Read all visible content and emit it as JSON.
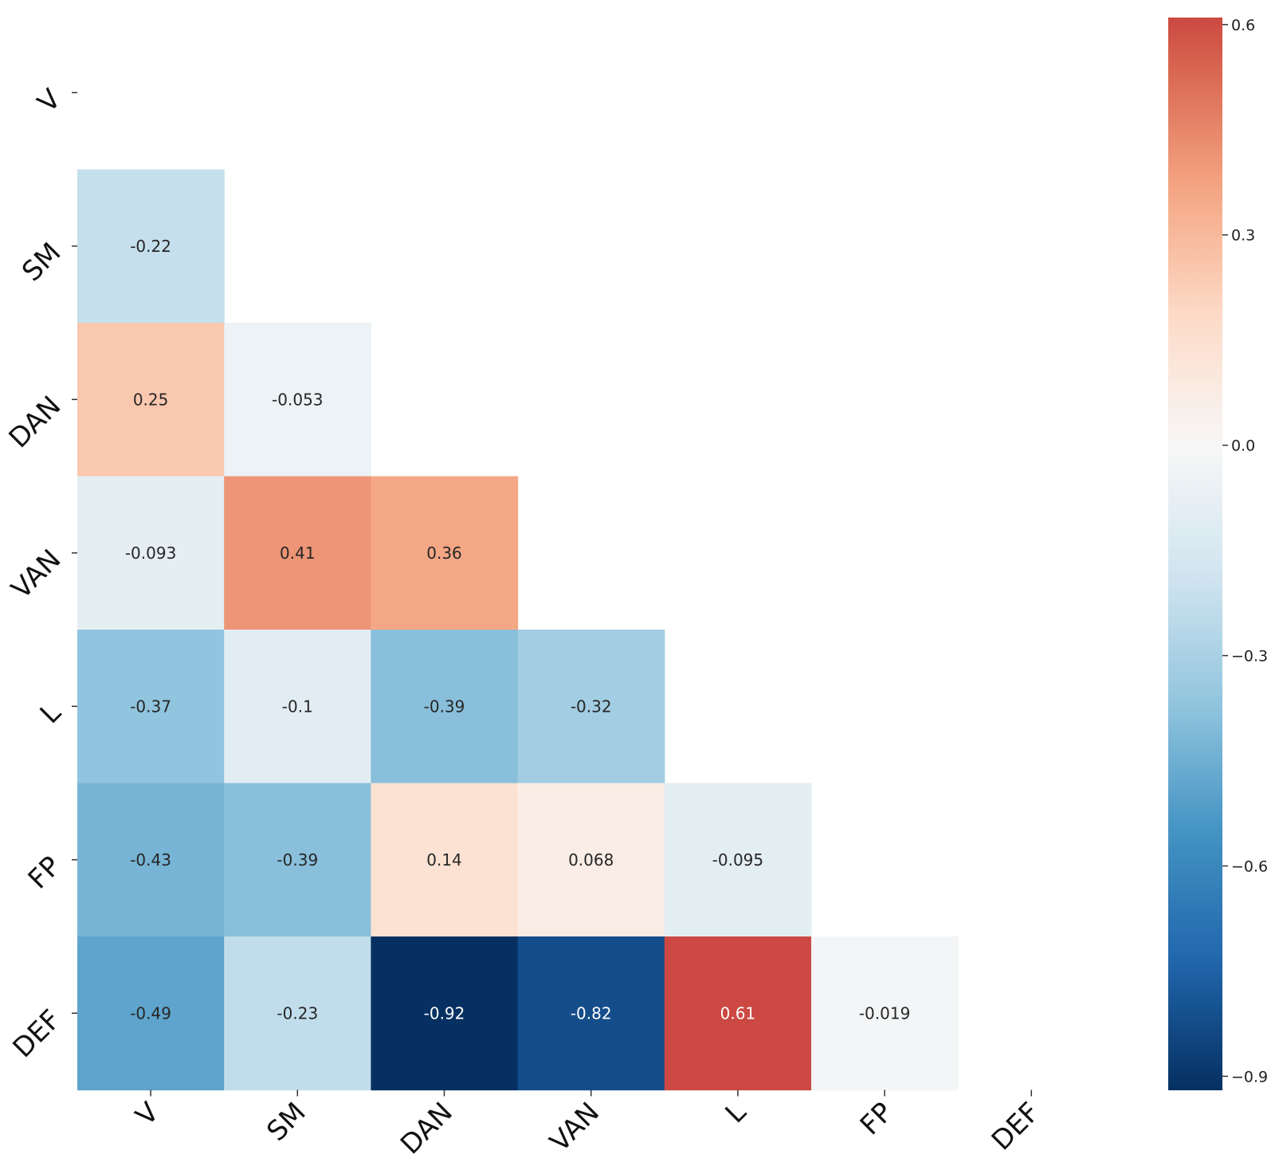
{
  "chart_data": {
    "type": "heatmap",
    "title": "",
    "xlabel": "",
    "ylabel": "",
    "variables": [
      "V",
      "SM",
      "DAN",
      "VAN",
      "L",
      "FP",
      "DEF"
    ],
    "mask": "upper-triangle-and-diagonal",
    "cells": [
      {
        "row": "SM",
        "col": "V",
        "value": -0.22,
        "label": "-0.22"
      },
      {
        "row": "DAN",
        "col": "V",
        "value": 0.25,
        "label": "0.25"
      },
      {
        "row": "DAN",
        "col": "SM",
        "value": -0.053,
        "label": "-0.053"
      },
      {
        "row": "VAN",
        "col": "V",
        "value": -0.093,
        "label": "-0.093"
      },
      {
        "row": "VAN",
        "col": "SM",
        "value": 0.41,
        "label": "0.41"
      },
      {
        "row": "VAN",
        "col": "DAN",
        "value": 0.36,
        "label": "0.36"
      },
      {
        "row": "L",
        "col": "V",
        "value": -0.37,
        "label": "-0.37"
      },
      {
        "row": "L",
        "col": "SM",
        "value": -0.1,
        "label": "-0.1"
      },
      {
        "row": "L",
        "col": "DAN",
        "value": -0.39,
        "label": "-0.39"
      },
      {
        "row": "L",
        "col": "VAN",
        "value": -0.32,
        "label": "-0.32"
      },
      {
        "row": "FP",
        "col": "V",
        "value": -0.43,
        "label": "-0.43"
      },
      {
        "row": "FP",
        "col": "SM",
        "value": -0.39,
        "label": "-0.39"
      },
      {
        "row": "FP",
        "col": "DAN",
        "value": 0.14,
        "label": "0.14"
      },
      {
        "row": "FP",
        "col": "VAN",
        "value": 0.068,
        "label": "0.068"
      },
      {
        "row": "FP",
        "col": "L",
        "value": -0.095,
        "label": "-0.095"
      },
      {
        "row": "DEF",
        "col": "V",
        "value": -0.49,
        "label": "-0.49"
      },
      {
        "row": "DEF",
        "col": "SM",
        "value": -0.23,
        "label": "-0.23"
      },
      {
        "row": "DEF",
        "col": "DAN",
        "value": -0.92,
        "label": "-0.92"
      },
      {
        "row": "DEF",
        "col": "VAN",
        "value": -0.82,
        "label": "-0.82"
      },
      {
        "row": "DEF",
        "col": "L",
        "value": 0.61,
        "label": "0.61"
      },
      {
        "row": "DEF",
        "col": "FP",
        "value": -0.019,
        "label": "-0.019"
      }
    ],
    "colormap": "RdBu_r",
    "colorbar": {
      "range": [
        -0.92,
        0.61
      ],
      "ticks": [
        0.6,
        0.3,
        0.0,
        -0.3,
        -0.6,
        -0.9
      ],
      "tick_labels": [
        "0.6",
        "0.3",
        "0.0",
        "−0.3",
        "−0.6",
        "−0.9"
      ],
      "position": "right"
    }
  }
}
